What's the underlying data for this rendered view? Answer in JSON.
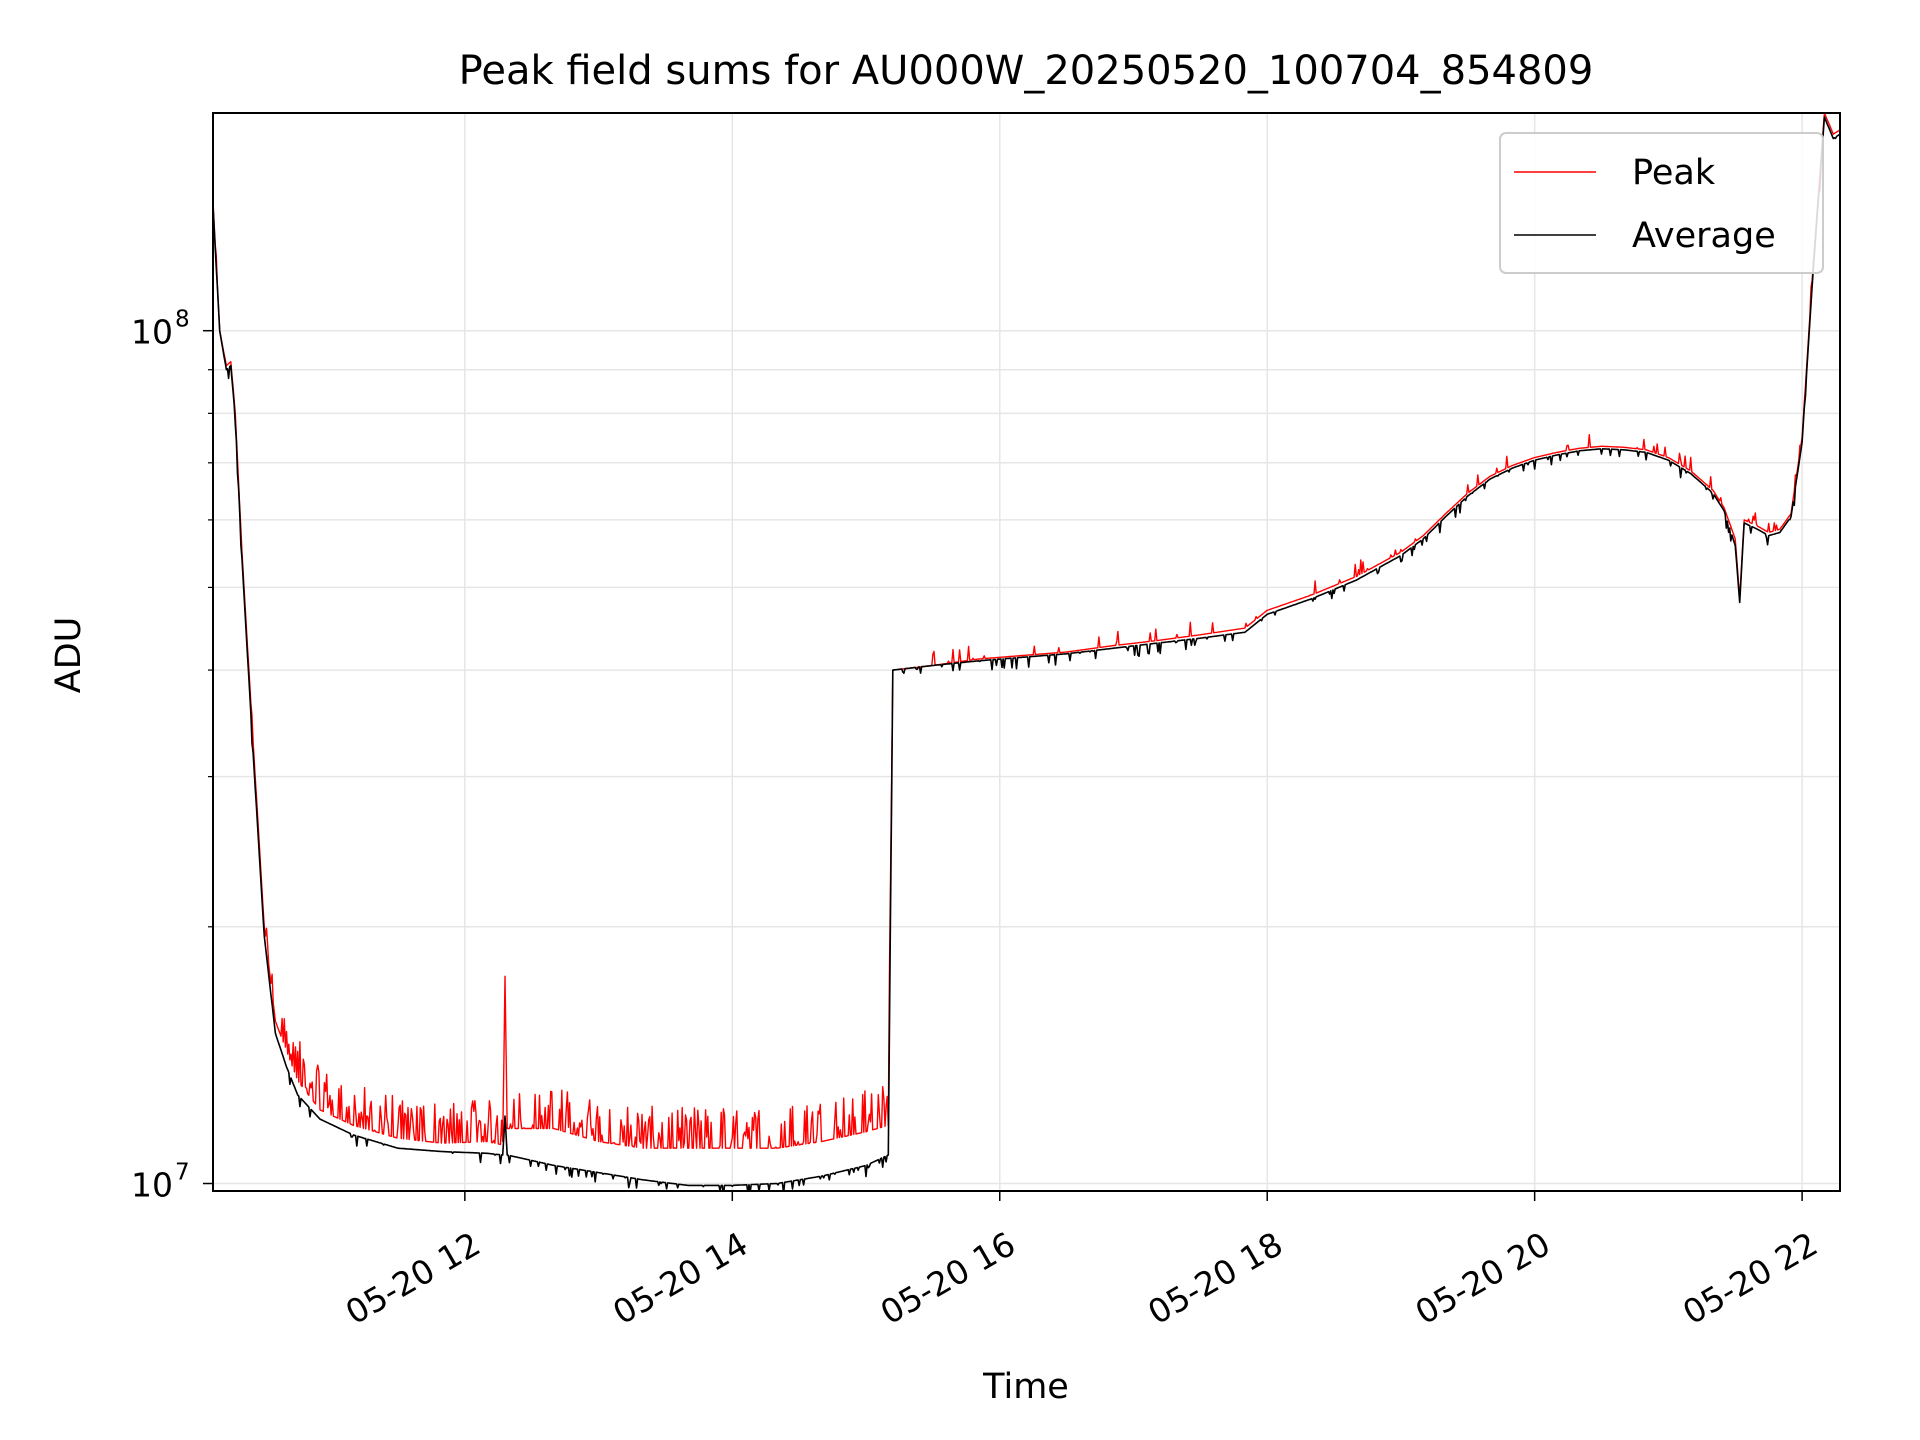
{
  "chart_data": {
    "type": "line",
    "title": "Peak field sums for AU000W_20250520_100704_854809",
    "xlabel": "Time",
    "ylabel": "ADU",
    "y_scale": "log",
    "grid": true,
    "legend_position": "top-right",
    "xlim": [
      "2025-05-20 10:07",
      "2025-05-20 22:17"
    ],
    "ylim": [
      9800000,
      180000000
    ],
    "x_ticks": [
      "05-20 12",
      "05-20 14",
      "05-20 16",
      "05-20 18",
      "05-20 20",
      "05-20 22"
    ],
    "y_ticks": [
      {
        "base": "10",
        "exp": "7",
        "value": 10000000
      },
      {
        "base": "10",
        "exp": "8",
        "value": 100000000
      }
    ],
    "colors": {
      "peak": "#ff0000",
      "average": "#000000"
    },
    "series": [
      {
        "name": "Peak",
        "color": "#ff0000",
        "points": [
          [
            "2025-05-20 10:07",
            142000000
          ],
          [
            "2025-05-20 10:10",
            100000000
          ],
          [
            "2025-05-20 10:13",
            91000000
          ],
          [
            "2025-05-20 10:15",
            92000000
          ],
          [
            "2025-05-20 10:17",
            80000000
          ],
          [
            "2025-05-20 10:20",
            55000000
          ],
          [
            "2025-05-20 10:25",
            33000000
          ],
          [
            "2025-05-20 10:30",
            20000000
          ],
          [
            "2025-05-20 10:35",
            15500000
          ],
          [
            "2025-05-20 10:40",
            14300000
          ],
          [
            "2025-05-20 10:45",
            13200000
          ],
          [
            "2025-05-20 10:55",
            12200000
          ],
          [
            "2025-05-20 11:10",
            11700000
          ],
          [
            "2025-05-20 11:30",
            11300000
          ],
          [
            "2025-05-20 11:50",
            11150000
          ],
          [
            "2025-05-20 12:10",
            11200000
          ],
          [
            "2025-05-20 12:17",
            11100000
          ],
          [
            "2025-05-20 12:18",
            17500000
          ],
          [
            "2025-05-20 12:19",
            11600000
          ],
          [
            "2025-05-20 12:40",
            11600000
          ],
          [
            "2025-05-20 13:00",
            11200000
          ],
          [
            "2025-05-20 13:20",
            11000000
          ],
          [
            "2025-05-20 13:40",
            11000000
          ],
          [
            "2025-05-20 14:00",
            11000000
          ],
          [
            "2025-05-20 14:20",
            11000000
          ],
          [
            "2025-05-20 14:40",
            11200000
          ],
          [
            "2025-05-20 15:00",
            11500000
          ],
          [
            "2025-05-20 15:10",
            11700000
          ],
          [
            "2025-05-20 15:12",
            40000000
          ],
          [
            "2025-05-20 15:30",
            40500000
          ],
          [
            "2025-05-20 15:50",
            41200000
          ],
          [
            "2025-05-20 16:10",
            41600000
          ],
          [
            "2025-05-20 16:30",
            42000000
          ],
          [
            "2025-05-20 16:50",
            42700000
          ],
          [
            "2025-05-20 17:10",
            43300000
          ],
          [
            "2025-05-20 17:30",
            44000000
          ],
          [
            "2025-05-20 17:50",
            44800000
          ],
          [
            "2025-05-20 18:00",
            47000000
          ],
          [
            "2025-05-20 18:20",
            49000000
          ],
          [
            "2025-05-20 18:40",
            51500000
          ],
          [
            "2025-05-20 19:00",
            55000000
          ],
          [
            "2025-05-20 19:10",
            57500000
          ],
          [
            "2025-05-20 19:20",
            61000000
          ],
          [
            "2025-05-20 19:30",
            64500000
          ],
          [
            "2025-05-20 19:40",
            67500000
          ],
          [
            "2025-05-20 19:50",
            69500000
          ],
          [
            "2025-05-20 20:00",
            71000000
          ],
          [
            "2025-05-20 20:10",
            72000000
          ],
          [
            "2025-05-20 20:20",
            72800000
          ],
          [
            "2025-05-20 20:30",
            73200000
          ],
          [
            "2025-05-20 20:40",
            73000000
          ],
          [
            "2025-05-20 20:50",
            72500000
          ],
          [
            "2025-05-20 21:00",
            71000000
          ],
          [
            "2025-05-20 21:10",
            68500000
          ],
          [
            "2025-05-20 21:20",
            65000000
          ],
          [
            "2025-05-20 21:25",
            62000000
          ],
          [
            "2025-05-20 21:30",
            57000000
          ],
          [
            "2025-05-20 21:32",
            48500000
          ],
          [
            "2025-05-20 21:34",
            60000000
          ],
          [
            "2025-05-20 21:40",
            59000000
          ],
          [
            "2025-05-20 21:45",
            58000000
          ],
          [
            "2025-05-20 21:50",
            58500000
          ],
          [
            "2025-05-20 21:55",
            61000000
          ],
          [
            "2025-05-20 22:00",
            75000000
          ],
          [
            "2025-05-20 22:05",
            120000000
          ],
          [
            "2025-05-20 22:10",
            180000000
          ],
          [
            "2025-05-20 22:14",
            170000000
          ],
          [
            "2025-05-20 22:17",
            172000000
          ]
        ]
      },
      {
        "name": "Average",
        "color": "#000000",
        "points": [
          [
            "2025-05-20 10:07",
            140000000
          ],
          [
            "2025-05-20 10:10",
            100000000
          ],
          [
            "2025-05-20 10:13",
            90000000
          ],
          [
            "2025-05-20 10:15",
            91000000
          ],
          [
            "2025-05-20 10:17",
            79000000
          ],
          [
            "2025-05-20 10:20",
            54000000
          ],
          [
            "2025-05-20 10:25",
            32000000
          ],
          [
            "2025-05-20 10:30",
            19500000
          ],
          [
            "2025-05-20 10:35",
            15000000
          ],
          [
            "2025-05-20 10:40",
            13700000
          ],
          [
            "2025-05-20 10:45",
            12700000
          ],
          [
            "2025-05-20 10:55",
            11900000
          ],
          [
            "2025-05-20 11:10",
            11400000
          ],
          [
            "2025-05-20 11:30",
            11000000
          ],
          [
            "2025-05-20 11:50",
            10900000
          ],
          [
            "2025-05-20 12:10",
            10850000
          ],
          [
            "2025-05-20 12:17",
            10800000
          ],
          [
            "2025-05-20 12:18",
            12000000
          ],
          [
            "2025-05-20 12:19",
            10800000
          ],
          [
            "2025-05-20 12:40",
            10500000
          ],
          [
            "2025-05-20 13:00",
            10300000
          ],
          [
            "2025-05-20 13:20",
            10100000
          ],
          [
            "2025-05-20 13:40",
            9950000
          ],
          [
            "2025-05-20 14:00",
            9950000
          ],
          [
            "2025-05-20 14:20",
            10000000
          ],
          [
            "2025-05-20 14:40",
            10200000
          ],
          [
            "2025-05-20 15:00",
            10500000
          ],
          [
            "2025-05-20 15:10",
            10800000
          ],
          [
            "2025-05-20 15:12",
            40000000
          ],
          [
            "2025-05-20 15:30",
            40500000
          ],
          [
            "2025-05-20 15:50",
            41000000
          ],
          [
            "2025-05-20 16:10",
            41400000
          ],
          [
            "2025-05-20 16:30",
            41800000
          ],
          [
            "2025-05-20 16:50",
            42400000
          ],
          [
            "2025-05-20 17:10",
            43000000
          ],
          [
            "2025-05-20 17:30",
            43600000
          ],
          [
            "2025-05-20 17:50",
            44300000
          ],
          [
            "2025-05-20 18:00",
            46500000
          ],
          [
            "2025-05-20 18:20",
            48500000
          ],
          [
            "2025-05-20 18:40",
            51000000
          ],
          [
            "2025-05-20 19:00",
            54500000
          ],
          [
            "2025-05-20 19:10",
            57000000
          ],
          [
            "2025-05-20 19:20",
            60500000
          ],
          [
            "2025-05-20 19:30",
            64000000
          ],
          [
            "2025-05-20 19:40",
            67000000
          ],
          [
            "2025-05-20 19:50",
            69000000
          ],
          [
            "2025-05-20 20:00",
            70500000
          ],
          [
            "2025-05-20 20:10",
            71500000
          ],
          [
            "2025-05-20 20:20",
            72300000
          ],
          [
            "2025-05-20 20:30",
            72700000
          ],
          [
            "2025-05-20 20:40",
            72500000
          ],
          [
            "2025-05-20 20:50",
            72000000
          ],
          [
            "2025-05-20 21:00",
            70500000
          ],
          [
            "2025-05-20 21:10",
            68000000
          ],
          [
            "2025-05-20 21:20",
            64500000
          ],
          [
            "2025-05-20 21:25",
            61500000
          ],
          [
            "2025-05-20 21:30",
            56000000
          ],
          [
            "2025-05-20 21:32",
            48000000
          ],
          [
            "2025-05-20 21:34",
            59500000
          ],
          [
            "2025-05-20 21:40",
            58500000
          ],
          [
            "2025-05-20 21:45",
            57500000
          ],
          [
            "2025-05-20 21:50",
            58000000
          ],
          [
            "2025-05-20 21:55",
            60500000
          ],
          [
            "2025-05-20 22:00",
            74000000
          ],
          [
            "2025-05-20 22:05",
            118000000
          ],
          [
            "2025-05-20 22:10",
            178000000
          ],
          [
            "2025-05-20 22:14",
            168000000
          ],
          [
            "2025-05-20 22:17",
            170000000
          ]
        ]
      }
    ]
  }
}
